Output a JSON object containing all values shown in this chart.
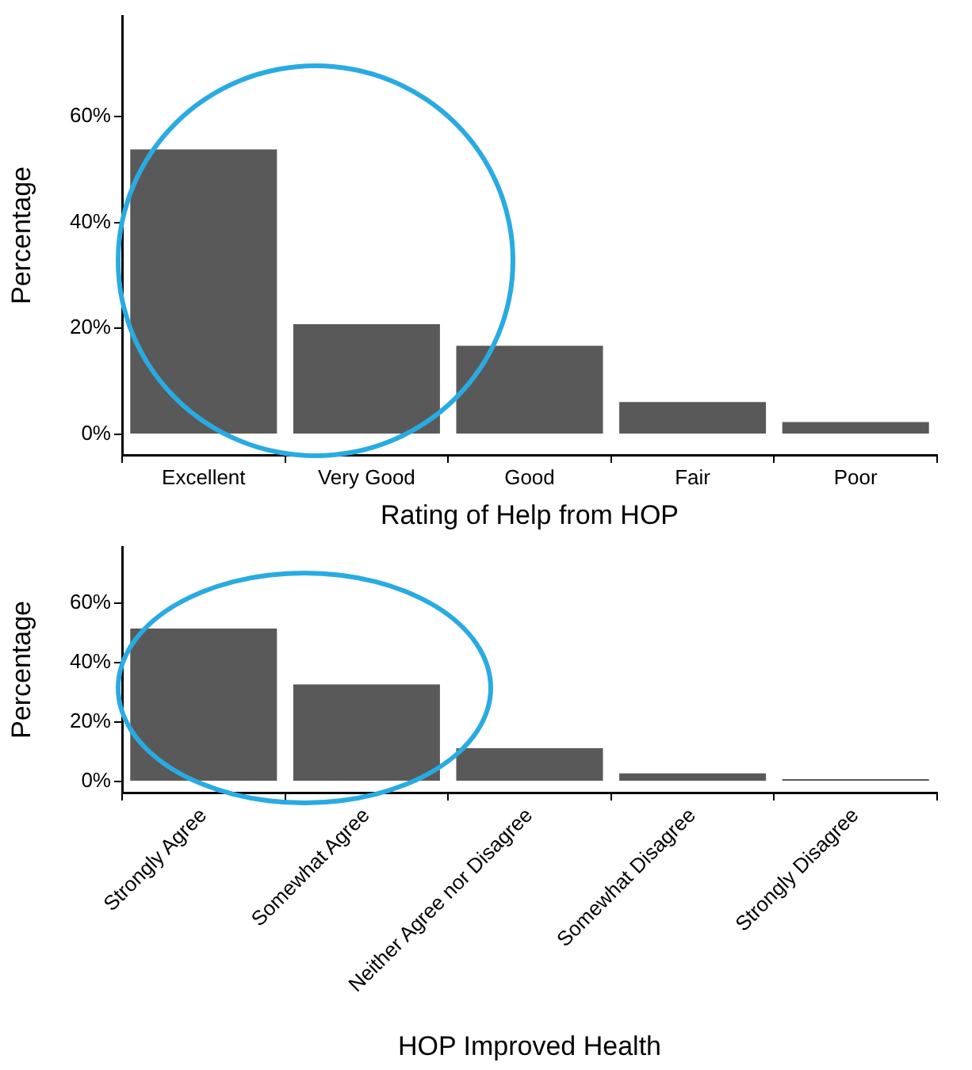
{
  "chart_data": [
    {
      "type": "bar",
      "xlabel": "Rating of Help from HOP",
      "ylabel": "Percentage",
      "categories": [
        "Excellent",
        "Very Good",
        "Good",
        "Fair",
        "Poor"
      ],
      "series": [
        {
          "color": "#595959",
          "values": [
            53.8,
            20.8,
            16.7,
            6.1,
            2.3
          ]
        }
      ],
      "ylim": [
        -3.9,
        79
      ],
      "yticks": [
        {
          "value": 0,
          "label": "0%"
        },
        {
          "value": 20,
          "label": "20%"
        },
        {
          "value": 40,
          "label": "40%"
        },
        {
          "value": 60,
          "label": "60%"
        }
      ],
      "legend": false
    },
    {
      "type": "bar",
      "xlabel": "HOP Improved Health",
      "ylabel": "Percentage",
      "categories": [
        "Strongly Agree",
        "Somewhat Agree",
        "Neither Agree nor Disagree",
        "Somewhat Disagree",
        "Strongly Disagree"
      ],
      "series": [
        {
          "color": "#595959",
          "values": [
            51.5,
            32.7,
            11.2,
            2.7,
            0.8
          ]
        }
      ],
      "ylim": [
        -3.75,
        79
      ],
      "yticks": [
        {
          "value": 0,
          "label": "0%"
        },
        {
          "value": 20,
          "label": "20%"
        },
        {
          "value": 40,
          "label": "40%"
        },
        {
          "value": 60,
          "label": "60%"
        }
      ],
      "legend": false
    }
  ]
}
